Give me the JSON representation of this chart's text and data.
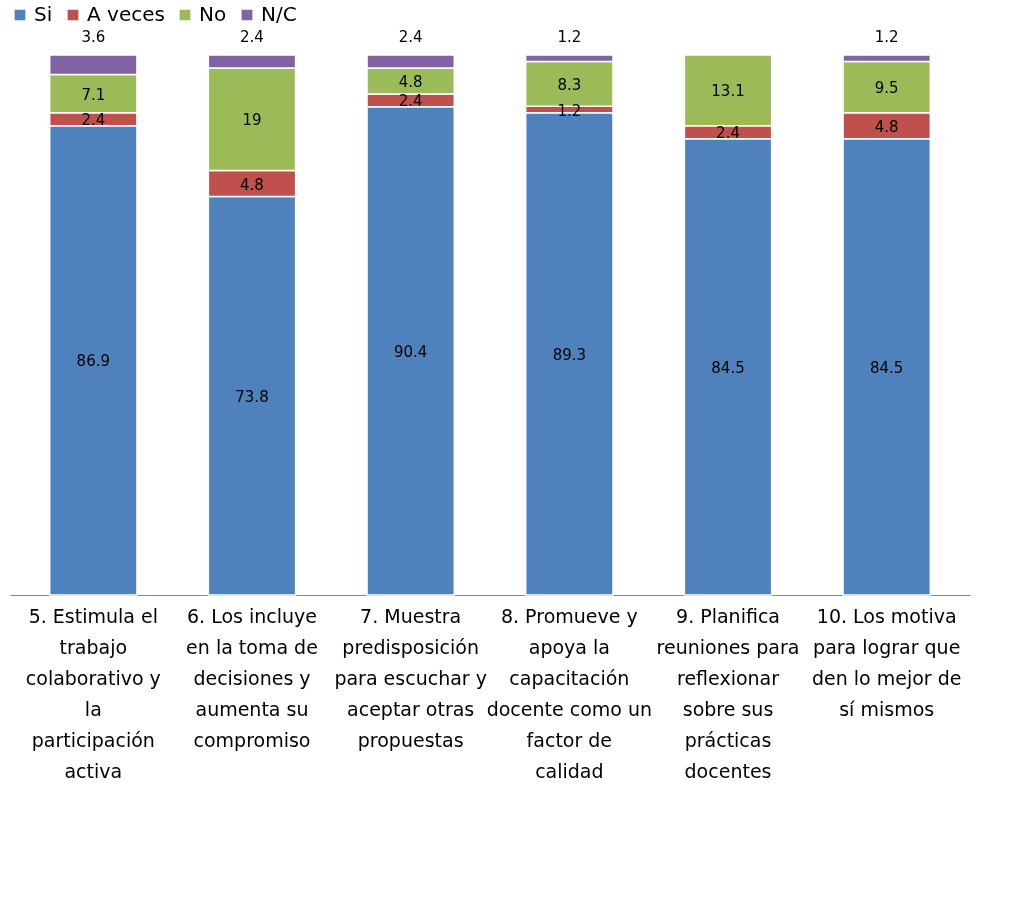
{
  "chart_data": {
    "type": "bar",
    "stacked": true,
    "data_labels": true,
    "legend": "top",
    "ylim": [
      0,
      100
    ],
    "categories": [
      "5. Estimula el trabajo colaborativo y la participación activa",
      "6. Los incluye en la toma de decisiones y aumenta su compromiso",
      "7. Muestra predisposición para escuchar y aceptar otras propuestas",
      "8. Promueve y apoya la capacitación docente como un factor de calidad",
      "9. Planifica reuniones para reflexionar sobre sus prácticas docentes",
      "10. Los  motiva para lograr que den lo mejor de sí mismos"
    ],
    "series": [
      {
        "name": "Si",
        "color": "#4f81bd",
        "values": [
          86.9,
          73.8,
          90.4,
          89.3,
          84.5,
          84.5
        ]
      },
      {
        "name": "A veces",
        "color": "#c0504d",
        "values": [
          2.4,
          4.8,
          2.4,
          1.2,
          2.4,
          4.8
        ]
      },
      {
        "name": "No",
        "color": "#9bbb59",
        "values": [
          7.1,
          19,
          4.8,
          8.3,
          13.1,
          9.5
        ]
      },
      {
        "name": "N/C",
        "color": "#8064a2",
        "values": [
          3.6,
          2.4,
          2.4,
          1.2,
          null,
          1.2
        ]
      }
    ]
  }
}
